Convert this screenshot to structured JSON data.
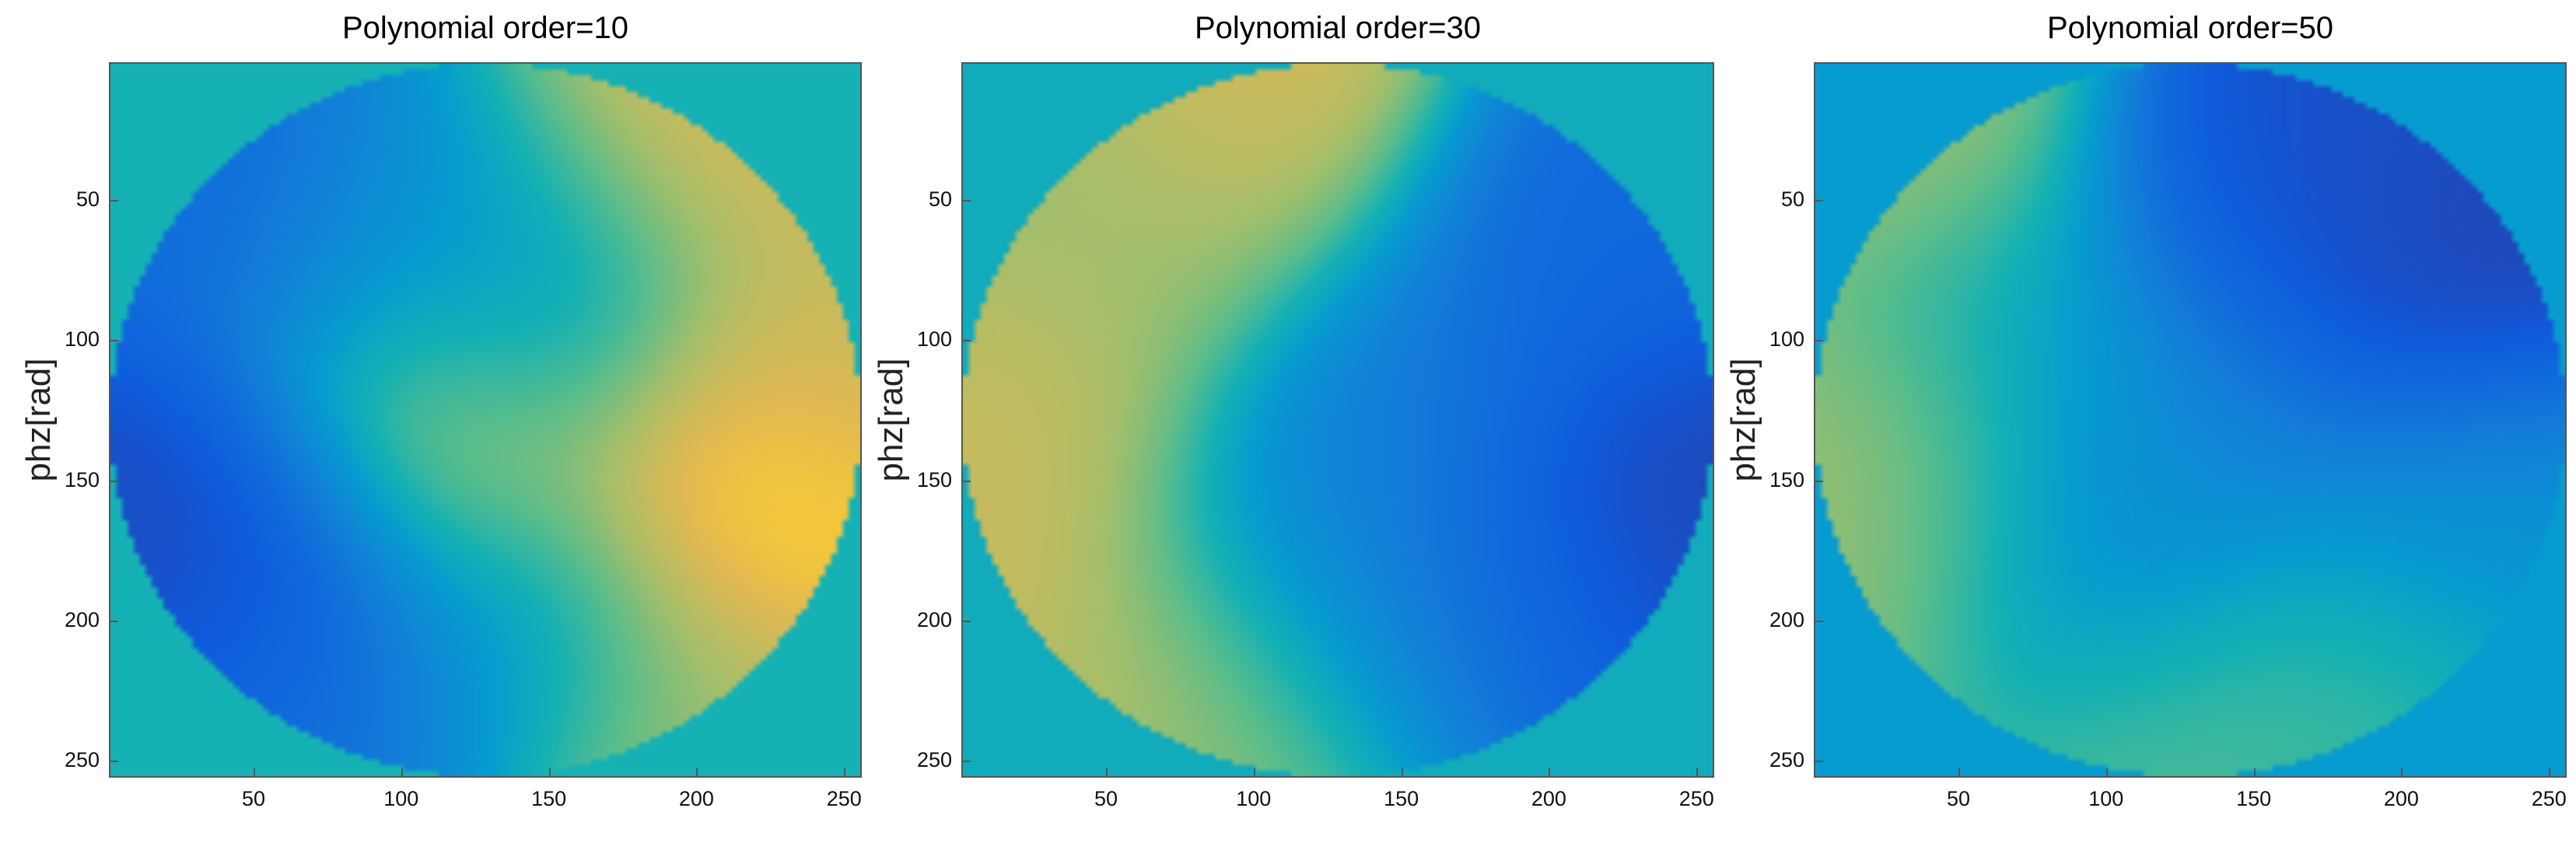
{
  "chart_data": [
    {
      "type": "heatmap",
      "title": "Polynomial order=10",
      "ylabel": "phz[rad]",
      "xlim": [
        1,
        256
      ],
      "ylim": [
        1,
        256
      ],
      "xticks": [
        "50",
        "100",
        "150",
        "200",
        "250"
      ],
      "yticks": [
        "50",
        "100",
        "150",
        "200",
        "250"
      ],
      "background_value": 0.55,
      "colormap": "parula",
      "aperture": "circular",
      "features": [
        {
          "x": 210,
          "y": 160,
          "value": 1.0
        },
        {
          "x": 120,
          "y": 130,
          "value": 0.9
        },
        {
          "x": 190,
          "y": 30,
          "value": 0.85
        },
        {
          "x": 235,
          "y": 110,
          "value": 0.8
        },
        {
          "x": 35,
          "y": 160,
          "value": 0.1
        },
        {
          "x": 45,
          "y": 200,
          "value": 0.05
        },
        {
          "x": 55,
          "y": 50,
          "value": 0.2
        },
        {
          "x": 140,
          "y": 90,
          "value": 0.35
        },
        {
          "x": 140,
          "y": 200,
          "value": 0.4
        },
        {
          "x": 200,
          "y": 235,
          "value": 0.75
        },
        {
          "x": 60,
          "y": 230,
          "value": 0.3
        },
        {
          "x": 110,
          "y": 60,
          "value": 0.45
        }
      ]
    },
    {
      "type": "heatmap",
      "title": "Polynomial order=30",
      "ylabel": "phz[rad]",
      "xlim": [
        1,
        256
      ],
      "ylim": [
        1,
        256
      ],
      "xticks": [
        "50",
        "100",
        "150",
        "200",
        "250"
      ],
      "yticks": [
        "50",
        "100",
        "150",
        "200",
        "250"
      ],
      "background_value": 0.52,
      "colormap": "parula",
      "aperture": "circular",
      "features": [
        {
          "x": 90,
          "y": 30,
          "value": 0.85
        },
        {
          "x": 30,
          "y": 110,
          "value": 0.8
        },
        {
          "x": 20,
          "y": 160,
          "value": 0.82
        },
        {
          "x": 60,
          "y": 220,
          "value": 0.8
        },
        {
          "x": 100,
          "y": 240,
          "value": 0.7
        },
        {
          "x": 230,
          "y": 155,
          "value": 0.05
        },
        {
          "x": 200,
          "y": 190,
          "value": 0.15
        },
        {
          "x": 210,
          "y": 80,
          "value": 0.2
        },
        {
          "x": 150,
          "y": 120,
          "value": 0.3
        },
        {
          "x": 160,
          "y": 200,
          "value": 0.3
        },
        {
          "x": 120,
          "y": 170,
          "value": 0.35
        },
        {
          "x": 60,
          "y": 60,
          "value": 0.7
        }
      ]
    },
    {
      "type": "heatmap",
      "title": "Polynomial order=50",
      "ylabel": "phz[rad]",
      "xlim": [
        1,
        256
      ],
      "ylim": [
        1,
        256
      ],
      "xticks": [
        "50",
        "100",
        "150",
        "200",
        "250"
      ],
      "yticks": [
        "50",
        "100",
        "150",
        "200",
        "250"
      ],
      "background_value": 0.45,
      "colormap": "parula",
      "aperture": "circular",
      "features": [
        {
          "x": 210,
          "y": 80,
          "value": 0.05
        },
        {
          "x": 180,
          "y": 40,
          "value": 0.1
        },
        {
          "x": 160,
          "y": 60,
          "value": 0.15
        },
        {
          "x": 20,
          "y": 140,
          "value": 0.75
        },
        {
          "x": 30,
          "y": 30,
          "value": 0.75
        },
        {
          "x": 20,
          "y": 180,
          "value": 0.75
        },
        {
          "x": 110,
          "y": 240,
          "value": 0.65
        },
        {
          "x": 180,
          "y": 230,
          "value": 0.6
        },
        {
          "x": 130,
          "y": 130,
          "value": 0.35
        },
        {
          "x": 90,
          "y": 180,
          "value": 0.35
        },
        {
          "x": 220,
          "y": 160,
          "value": 0.4
        },
        {
          "x": 70,
          "y": 100,
          "value": 0.5
        }
      ]
    }
  ]
}
